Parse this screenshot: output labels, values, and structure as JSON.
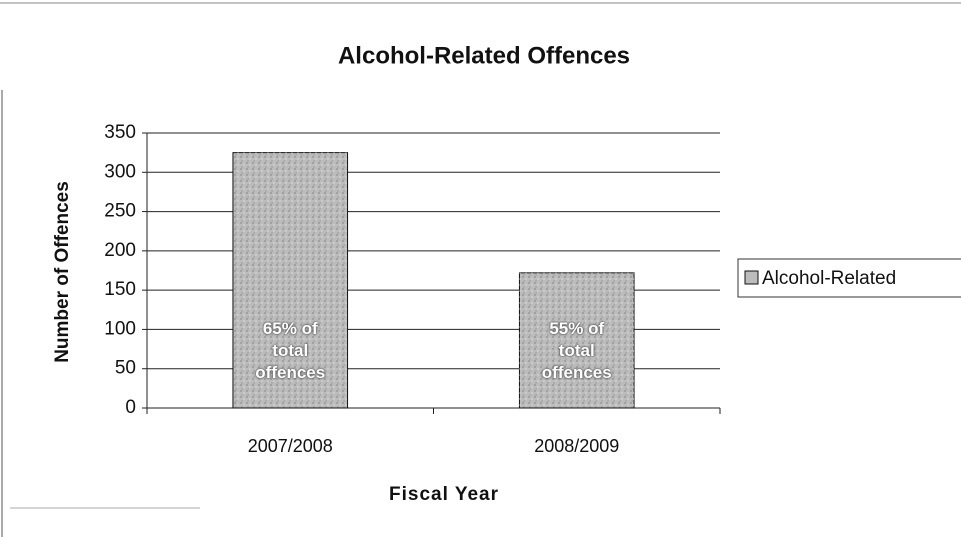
{
  "chart_data": {
    "type": "bar",
    "title": "Alcohol-Related Offences",
    "x_label": "Fiscal Year",
    "y_label": "Number of Offences",
    "categories": [
      "2007/2008",
      "2008/2009"
    ],
    "series": [
      {
        "name": "Alcohol-Related",
        "color": "#bcbcbc",
        "values": [
          325,
          172
        ]
      }
    ],
    "annotations": [
      "65% of total offences",
      "55% of total offences"
    ],
    "ylim": [
      0,
      350
    ],
    "yticks": [
      0,
      50,
      100,
      150,
      200,
      250,
      300,
      350
    ],
    "grid": true,
    "legend": "right"
  }
}
